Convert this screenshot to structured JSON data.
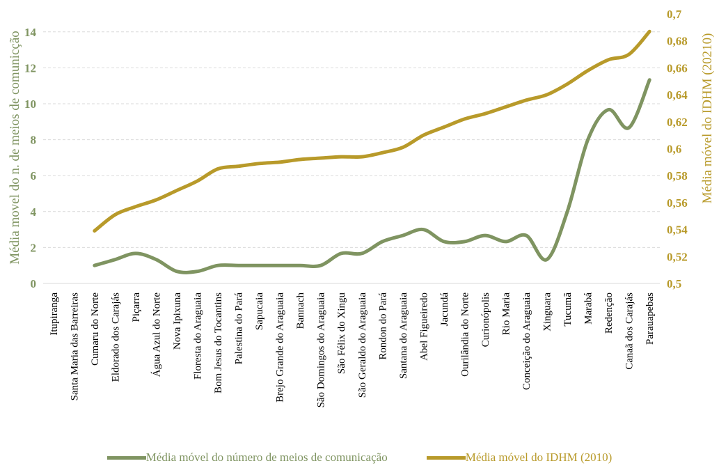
{
  "colors": {
    "comm": "#7f9461",
    "idhm": "#b89a2a",
    "grid": "#d9d9d9"
  },
  "chart_data": {
    "type": "line",
    "categories": [
      "Itupiranga",
      "Santa Maria das Barreiras",
      "Cumaru do Norte",
      "Eldorado dos Carajás",
      "Piçarra",
      "Água Azul do Norte",
      "Nova Ipixuna",
      "Floresta do Araguaia",
      "Bom Jesus do Tocantins",
      "Palestina do Pará",
      "Sapucaia",
      "Brejo Grande do Araguaia",
      "Bannach",
      "São Domingos do Araguaia",
      "São Félix do Xingu",
      "São Geraldo do Araguaia",
      "Rondon do Pará",
      "Santana do Araguaia",
      "Abel Figueiredo",
      "Jacundá",
      "Ourilândia do Norte",
      "Curionópolis",
      "Rio Maria",
      "Conceição do Araguaia",
      "Xinguara",
      "Tucumã",
      "Marabá",
      "Redenção",
      "Canaã dos Carajás",
      "Parauapebas"
    ],
    "series": [
      {
        "name": "Média móvel do número de meios de comunicação",
        "axis": "left",
        "values": [
          null,
          null,
          1.0,
          1.33,
          1.67,
          1.33,
          0.67,
          0.67,
          1.0,
          1.0,
          1.0,
          1.0,
          1.0,
          1.0,
          1.67,
          1.67,
          2.33,
          2.67,
          3.0,
          2.33,
          2.33,
          2.67,
          2.33,
          2.67,
          1.33,
          4.0,
          8.0,
          9.67,
          8.67,
          11.33
        ]
      },
      {
        "name": "Média móvel do IDHM (2010)",
        "axis": "right",
        "values": [
          null,
          null,
          0.539,
          0.551,
          0.557,
          0.562,
          0.569,
          0.576,
          0.585,
          0.587,
          0.589,
          0.59,
          0.592,
          0.593,
          0.594,
          0.594,
          0.597,
          0.601,
          0.61,
          0.616,
          0.622,
          0.626,
          0.631,
          0.636,
          0.64,
          0.648,
          0.658,
          0.666,
          0.67,
          0.687
        ]
      }
    ],
    "y_left": {
      "label": "Média movel do n. de meios de comunicção",
      "ylim": [
        0,
        15
      ],
      "ticks": [
        "0",
        "2",
        "4",
        "6",
        "8",
        "10",
        "12",
        "14"
      ]
    },
    "y_right": {
      "label": "Média móvel do IDHM (20210)",
      "ylim": [
        0.5,
        0.7
      ],
      "ticks": [
        "0,5",
        "0,52",
        "0,54",
        "0,56",
        "0,58",
        "0,6",
        "0,62",
        "0,64",
        "0,66",
        "0,68",
        "0,7"
      ]
    },
    "grid": "horizontal-dashed",
    "legend_position": "bottom"
  }
}
